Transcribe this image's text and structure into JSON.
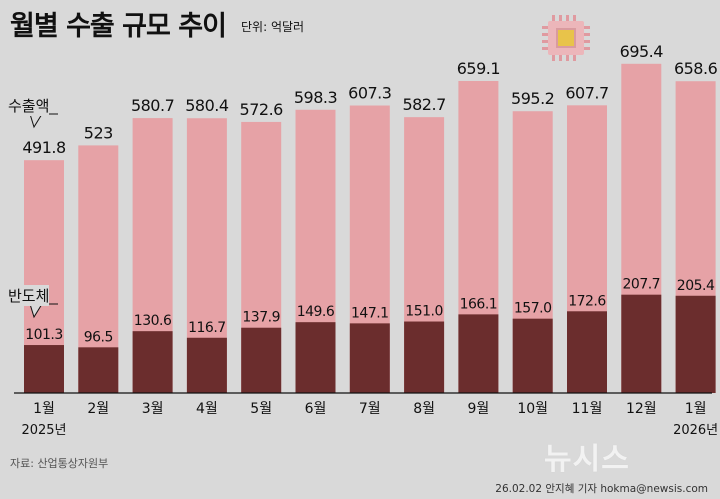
{
  "title": "월별 수출 규모 추이",
  "unit": "단위: 억달러",
  "source": "자료: 산업통상자원부",
  "credit": "26.02.02 안지혜 기자 hokma@newsis.com",
  "logo": "뉴시스",
  "colors": {
    "background": "#d9d9d9",
    "total_bar": "#e6a2a6",
    "semiconductor_bar": "#6b2d2d"
  },
  "chart_data": {
    "type": "bar",
    "stacked": "overlay",
    "categories": [
      "1월",
      "2월",
      "3월",
      "4월",
      "5월",
      "6월",
      "7월",
      "8월",
      "9월",
      "10월",
      "11월",
      "12월",
      "1월"
    ],
    "year_labels": [
      "2025년",
      "",
      "",
      "",
      "",
      "",
      "",
      "",
      "",
      "",
      "",
      "",
      "2026년"
    ],
    "series": [
      {
        "name": "수출액",
        "values": [
          491.8,
          523,
          580.7,
          580.4,
          572.6,
          598.3,
          607.3,
          582.7,
          659.1,
          595.2,
          607.7,
          695.4,
          658.6
        ],
        "labels": [
          "491.8",
          "523",
          "580.7",
          "580.4",
          "572.6",
          "598.3",
          "607.3",
          "582.7",
          "659.1",
          "595.2",
          "607.7",
          "695.4",
          "658.6"
        ]
      },
      {
        "name": "반도체",
        "values": [
          101.3,
          96.5,
          130.6,
          116.7,
          137.9,
          149.6,
          147.1,
          151.0,
          166.1,
          157.0,
          172.6,
          207.7,
          205.4
        ],
        "labels": [
          "101.3",
          "96.5",
          "130.6",
          "116.7",
          "137.9",
          "149.6",
          "147.1",
          "151.0",
          "166.1",
          "157.0",
          "172.6",
          "207.7",
          "205.4"
        ]
      }
    ],
    "ylim": [
      0,
      720
    ],
    "grid": false,
    "legend": "inline-callouts-left"
  }
}
